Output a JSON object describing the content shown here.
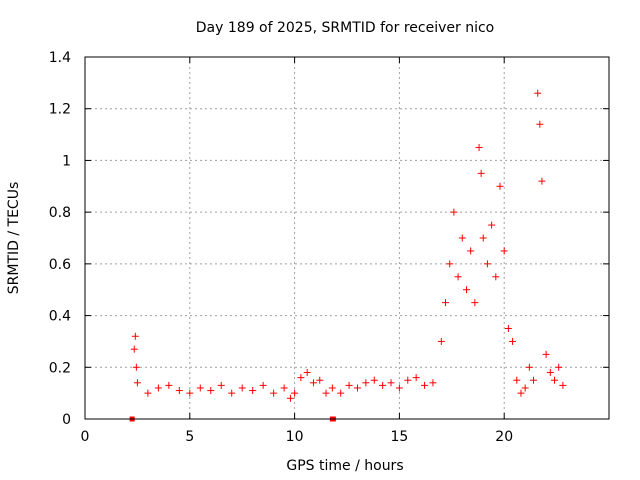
{
  "chart_data": {
    "type": "scatter",
    "title": "Day 189 of 2025, SRMTID for receiver nico",
    "xlabel": "GPS time / hours",
    "ylabel": "SRMTID / TECUs",
    "xlim": [
      0,
      25
    ],
    "ylim": [
      0,
      1.4
    ],
    "xticks": [
      0,
      5,
      10,
      15,
      20
    ],
    "xtick_labels": [
      "0",
      "5",
      "10",
      "15",
      "20"
    ],
    "yticks": [
      0,
      0.2,
      0.4,
      0.6,
      0.8,
      1.0,
      1.2,
      1.4
    ],
    "ytick_labels": [
      "0",
      "0.2",
      "0.4",
      "0.6",
      "0.8",
      "1",
      "1.2",
      "1.4"
    ],
    "grid": true,
    "marker": "plus",
    "color": "#ff0000",
    "series": [
      {
        "name": "SRMTID",
        "x": [
          2.35,
          2.4,
          2.45,
          2.5,
          3.0,
          3.5,
          4.0,
          4.5,
          5.0,
          5.5,
          6.0,
          6.5,
          7.0,
          7.5,
          8.0,
          8.5,
          9.0,
          9.5,
          9.8,
          10.0,
          10.3,
          10.6,
          10.9,
          11.2,
          11.5,
          11.8,
          12.2,
          12.6,
          13.0,
          13.4,
          13.8,
          14.2,
          14.6,
          15.0,
          15.4,
          15.8,
          16.2,
          16.6,
          17.0,
          17.2,
          17.4,
          17.6,
          17.8,
          18.0,
          18.2,
          18.4,
          18.6,
          18.8,
          18.9,
          19.0,
          19.2,
          19.4,
          19.6,
          19.8,
          20.0,
          20.2,
          20.4,
          20.6,
          20.8,
          21.0,
          21.2,
          21.4,
          21.6,
          21.7,
          21.8,
          22.0,
          22.2,
          22.4,
          22.6,
          22.8
        ],
        "y": [
          0.27,
          0.32,
          0.2,
          0.14,
          0.1,
          0.12,
          0.13,
          0.11,
          0.1,
          0.12,
          0.11,
          0.13,
          0.1,
          0.12,
          0.11,
          0.13,
          0.1,
          0.12,
          0.08,
          0.1,
          0.16,
          0.18,
          0.14,
          0.15,
          0.1,
          0.12,
          0.1,
          0.13,
          0.12,
          0.14,
          0.15,
          0.13,
          0.14,
          0.12,
          0.15,
          0.16,
          0.13,
          0.14,
          0.3,
          0.45,
          0.6,
          0.8,
          0.55,
          0.7,
          0.5,
          0.65,
          0.45,
          1.05,
          0.95,
          0.7,
          0.6,
          0.75,
          0.55,
          0.9,
          0.65,
          0.35,
          0.3,
          0.15,
          0.1,
          0.12,
          0.2,
          0.15,
          1.26,
          1.14,
          0.92,
          0.25,
          0.18,
          0.15,
          0.2,
          0.13
        ]
      }
    ],
    "zero_markers_x": [
      2.25,
      11.8,
      11.85
    ]
  }
}
